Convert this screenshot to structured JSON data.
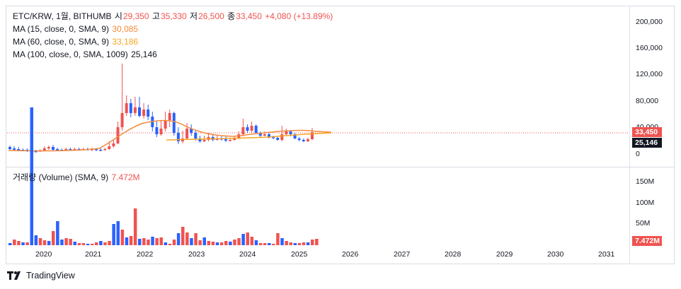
{
  "colors": {
    "up": "#ef5350",
    "down": "#2962ff",
    "ma15": "#f28a3b",
    "ma60": "#f5a623",
    "ma100": "#131722"
  },
  "header": {
    "symbol": "ETC/KRW, 1월, BITHUMB",
    "open_label": "시",
    "open": "29,350",
    "high_label": "고",
    "high": "35,330",
    "low_label": "저",
    "low": "26,500",
    "close_label": "종",
    "close": "33,450",
    "change": "+4,080 (+13.89%)"
  },
  "indicators": [
    {
      "label": "MA (15, close, 0, SMA, 9)",
      "value": "30,085"
    },
    {
      "label": "MA (60, close, 0, SMA, 9)",
      "value": "33,186"
    },
    {
      "label": "MA (100, close, 0, SMA, 1009)",
      "value": "25,146"
    }
  ],
  "volume_legend": {
    "label": "거래량 (Volume) (SMA, 9)",
    "value": "7.472M"
  },
  "price_axis": [
    "200,000",
    "160,000",
    "120,000",
    "80,000",
    "40,000",
    "0"
  ],
  "volume_axis": [
    "150M",
    "100M",
    "50M"
  ],
  "price_tags": {
    "last": "33,450",
    "ma": "25,146",
    "volume": "7.472M"
  },
  "time_axis": [
    "2020",
    "2021",
    "2022",
    "2023",
    "2024",
    "2025",
    "2026",
    "2027",
    "2028",
    "2029",
    "2030",
    "2031"
  ],
  "brand": "TradingView"
}
